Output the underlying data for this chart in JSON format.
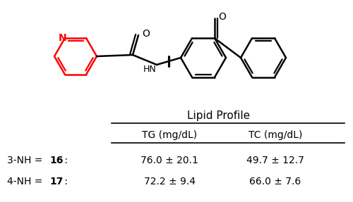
{
  "background_color": "#ffffff",
  "table_header": "Lipid Profile",
  "col1_header": "TG (mg/dL)",
  "col2_header": "TC (mg/dL)",
  "row1_col1": "76.0 ± 20.1",
  "row1_col2": "49.7 ± 12.7",
  "row2_col1": "72.2 ± 9.4",
  "row2_col2": "66.0 ± 7.6",
  "pyridine_color": "#ff0000",
  "structure_color": "#000000",
  "line_width": 1.8
}
